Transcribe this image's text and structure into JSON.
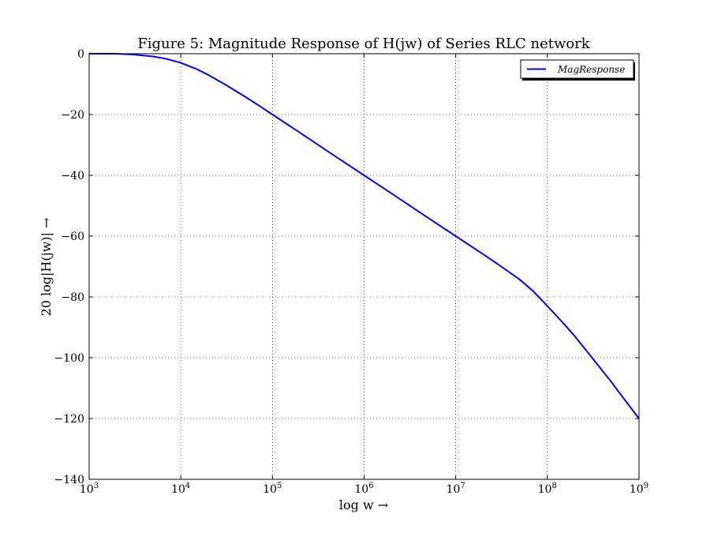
{
  "chart_data": {
    "type": "line",
    "title": "Figure 5: Magnitude Response of H(jw) of Series RLC network",
    "xlabel": "log w →",
    "ylabel": "20 log|H(jw)| →",
    "xscale": "log",
    "xlim": [
      1000,
      1000000000
    ],
    "ylim": [
      -140,
      0
    ],
    "grid": true,
    "legend_position": "top-right",
    "xticks": [
      {
        "value": 1000,
        "base": "10",
        "exp": "3"
      },
      {
        "value": 10000,
        "base": "10",
        "exp": "4"
      },
      {
        "value": 100000,
        "base": "10",
        "exp": "5"
      },
      {
        "value": 1000000,
        "base": "10",
        "exp": "6"
      },
      {
        "value": 10000000,
        "base": "10",
        "exp": "7"
      },
      {
        "value": 100000000,
        "base": "10",
        "exp": "8"
      },
      {
        "value": 1000000000,
        "base": "10",
        "exp": "9"
      }
    ],
    "yticks": [
      {
        "value": 0,
        "label": "0"
      },
      {
        "value": -20,
        "label": "−20"
      },
      {
        "value": -40,
        "label": "−40"
      },
      {
        "value": -60,
        "label": "−60"
      },
      {
        "value": -80,
        "label": "−80"
      },
      {
        "value": -100,
        "label": "−100"
      },
      {
        "value": -120,
        "label": "−120"
      },
      {
        "value": -140,
        "label": "−140"
      }
    ],
    "series": [
      {
        "name": "MagResponse",
        "color": "#0000ff",
        "x": [
          1000,
          2000,
          3000,
          5000,
          7000,
          10000,
          15000,
          20000,
          30000,
          50000,
          70000,
          100000,
          200000,
          500000,
          1000000,
          2000000,
          5000000,
          10000000,
          20000000,
          30000000,
          50000000,
          70000000,
          100000000,
          150000000,
          200000000,
          300000000,
          500000000,
          700000000,
          1000000000
        ],
        "y": [
          0,
          -0.04,
          -0.25,
          -0.9,
          -1.7,
          -3.0,
          -5.1,
          -7.0,
          -10.0,
          -14.1,
          -16.9,
          -20.0,
          -26.0,
          -34.0,
          -40.0,
          -46.0,
          -54.0,
          -60.0,
          -66.0,
          -69.6,
          -74.3,
          -78.1,
          -83.0,
          -88.7,
          -93.0,
          -99.6,
          -108.0,
          -113.9,
          -120.0
        ]
      }
    ]
  }
}
